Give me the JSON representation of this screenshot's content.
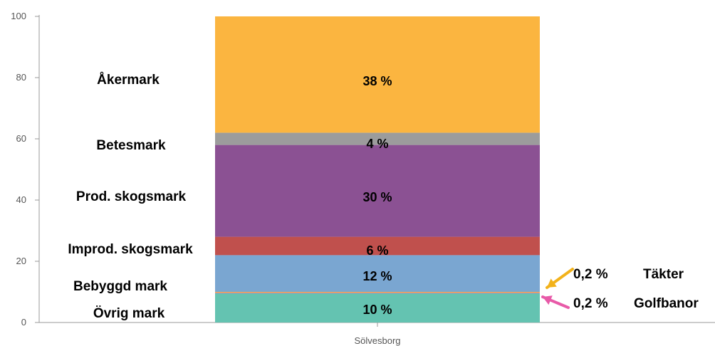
{
  "chart_data": {
    "type": "bar",
    "stacked": true,
    "categories": [
      "Sölvesborg"
    ],
    "ylim": [
      0,
      100
    ],
    "yticks": [
      0,
      20,
      40,
      60,
      80,
      100
    ],
    "grid": false,
    "series": [
      {
        "name": "Övrig mark",
        "values": [
          9.6
        ],
        "label": "10 %",
        "color": "#64c3b1"
      },
      {
        "name": "Golfbanor",
        "values": [
          0.2
        ],
        "label": "0,2 %",
        "color": "#e85aa8"
      },
      {
        "name": "Täkter",
        "values": [
          0.2
        ],
        "label": "0,2 %",
        "color": "#f2b21b"
      },
      {
        "name": "Bebyggd mark",
        "values": [
          12
        ],
        "label": "12 %",
        "color": "#7aa6d1"
      },
      {
        "name": "Improd. skogsmark",
        "values": [
          6
        ],
        "label": "6 %",
        "color": "#c0504d"
      },
      {
        "name": "Prod. skogsmark",
        "values": [
          30
        ],
        "label": "30 %",
        "color": "#8b5193"
      },
      {
        "name": "Betesmark",
        "values": [
          4
        ],
        "label": "4 %",
        "color": "#9c9c9c"
      },
      {
        "name": "Åkermark",
        "values": [
          38
        ],
        "label": "38 %",
        "color": "#fbb540"
      }
    ],
    "callouts": [
      {
        "series": "Täkter",
        "value": "0,2 %",
        "name": "Täkter",
        "arrow_color": "#f2b21b"
      },
      {
        "series": "Golfbanor",
        "value": "0,2 %",
        "name": "Golfbanor",
        "arrow_color": "#e85aa8"
      }
    ]
  }
}
